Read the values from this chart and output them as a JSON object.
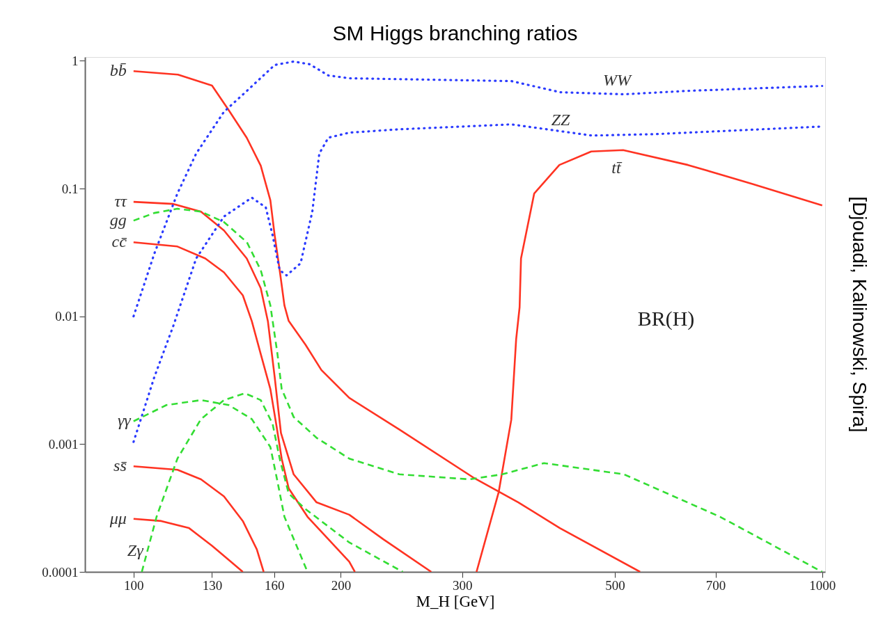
{
  "chart_data": {
    "type": "line",
    "title": "SM Higgs branching ratios",
    "xlabel": "M_H [GeV]",
    "log": "xy",
    "grid": false,
    "xlim": [
      85,
      1010
    ],
    "ylim": [
      0.0001,
      1.07
    ],
    "xticks": [
      100,
      130,
      160,
      200,
      300,
      500,
      700,
      1000
    ],
    "yticks": [
      0.0001,
      0.001,
      0.01,
      0.1,
      1
    ],
    "series": [
      {
        "name": "bb̄",
        "color": "#ff3322",
        "line_style": "solid",
        "x": [
          100,
          116,
          130,
          137.5,
          146,
          153,
          158,
          160.3,
          163,
          165.6,
          168,
          177.7,
          187.4,
          205.7,
          243.2,
          311,
          362,
          416,
          544
        ],
        "values": [
          0.83,
          0.78,
          0.64,
          0.41,
          0.25,
          0.151,
          0.081,
          0.043,
          0.023,
          0.0122,
          0.0092,
          0.006,
          0.0038,
          0.0023,
          0.0013,
          0.00055,
          0.00035,
          0.00022,
          0.0001
        ]
      },
      {
        "name": "ττ",
        "color": "#ff3322",
        "line_style": "solid",
        "x": [
          100,
          114.2,
          125.3,
          135.3,
          146,
          153,
          156.7,
          160.3,
          163.7,
          170.8,
          184.4,
          205.7,
          230.5,
          270.6
        ],
        "values": [
          0.0787,
          0.0758,
          0.066,
          0.047,
          0.0284,
          0.0166,
          0.00916,
          0.00335,
          0.00122,
          0.00058,
          0.00035,
          0.00028,
          0.00018,
          0.0001
        ]
      },
      {
        "name": "cc̄",
        "color": "#ff3322",
        "line_style": "solid",
        "x": [
          100,
          115.8,
          127.1,
          135.3,
          144.1,
          148.5,
          153,
          158,
          161.1,
          164.1,
          168,
          178.9,
          205.7,
          209.6
        ],
        "values": [
          0.038,
          0.0352,
          0.0284,
          0.0221,
          0.0146,
          0.00916,
          0.00507,
          0.0027,
          0.00144,
          0.00077,
          0.00045,
          0.00027,
          0.00012,
          0.0001
        ]
      },
      {
        "name": "ss̄",
        "color": "#ff3322",
        "line_style": "solid",
        "x": [
          100,
          115.8,
          125.3,
          135.3,
          144.1,
          151,
          154.5
        ],
        "values": [
          0.00067,
          0.00063,
          0.00053,
          0.00039,
          0.00025,
          0.00015,
          0.0001
        ]
      },
      {
        "name": "μμ",
        "color": "#ff3322",
        "line_style": "solid",
        "x": [
          100,
          109.7,
          120.4,
          130,
          138.5,
          144.1
        ],
        "values": [
          0.00026,
          0.00025,
          0.00022,
          0.00016,
          0.00012,
          0.0001
        ]
      },
      {
        "name": "tt̄",
        "color": "#ff3322",
        "line_style": "solid",
        "x": [
          314.8,
          339,
          353.6,
          359.4,
          363.6,
          365.3,
          381.8,
          415.3,
          462,
          514,
          638.4,
          790.7,
          1000
        ],
        "values": [
          0.0001,
          0.00042,
          0.00155,
          0.0066,
          0.0118,
          0.0284,
          0.0916,
          0.153,
          0.195,
          0.2,
          0.153,
          0.109,
          0.0739
        ]
      },
      {
        "name": "WW",
        "color": "#2b3bff",
        "line_style": "dotted",
        "x": [
          100,
          107.2,
          115.8,
          123.3,
          135.3,
          146.1,
          160.3,
          170.8,
          180.2,
          191.8,
          205.7,
          353.6,
          416.3,
          515.3,
          638.4,
          1000
        ],
        "values": [
          0.01,
          0.031,
          0.0916,
          0.188,
          0.399,
          0.582,
          0.927,
          0.987,
          0.94,
          0.768,
          0.73,
          0.694,
          0.568,
          0.547,
          0.582,
          0.636
        ]
      },
      {
        "name": "ZZ",
        "color": "#2b3bff",
        "line_style": "dotted",
        "x": [
          100,
          107.2,
          114.2,
          123.3,
          135.3,
          148.5,
          155.6,
          159.2,
          163,
          166.8,
          174.8,
          181.8,
          186.1,
          191.8,
          205.7,
          243.2,
          353.6,
          463,
          573.5,
          1000
        ],
        "values": [
          0.00104,
          0.00335,
          0.0084,
          0.0284,
          0.0604,
          0.0849,
          0.0712,
          0.043,
          0.023,
          0.0209,
          0.026,
          0.066,
          0.188,
          0.25,
          0.274,
          0.291,
          0.318,
          0.26,
          0.267,
          0.306
        ]
      },
      {
        "name": "gg",
        "color": "#33dd33",
        "line_style": "dashed",
        "x": [
          100,
          107.2,
          115.8,
          125.3,
          135.3,
          146.1,
          153,
          158,
          161.8,
          164.1,
          170.8,
          184.4,
          205.7,
          243.2,
          307.5,
          343,
          394.5,
          515.3,
          710.6,
          1000
        ],
        "values": [
          0.0561,
          0.0644,
          0.0695,
          0.066,
          0.0547,
          0.038,
          0.023,
          0.0122,
          0.00507,
          0.0027,
          0.00163,
          0.00112,
          0.00077,
          0.00058,
          0.00053,
          0.00058,
          0.00071,
          0.00058,
          0.00027,
          0.0001
        ]
      },
      {
        "name": "γγ",
        "color": "#33dd33",
        "line_style": "dashed",
        "x": [
          100,
          111.6,
          125.3,
          137.5,
          148.5,
          158,
          161.8,
          165.6,
          178.9
        ],
        "values": [
          0.00151,
          0.00202,
          0.00221,
          0.00202,
          0.00157,
          0.00095,
          0.00051,
          0.00027,
          0.0001
        ]
      },
      {
        "name": "Zγ",
        "color": "#33dd33",
        "line_style": "dashed",
        "x": [
          102.8,
          108,
          115.8,
          125.3,
          135.3,
          145.1,
          153,
          159.2,
          163,
          168,
          177.7,
          205.7,
          246
        ],
        "values": [
          0.0001,
          0.00027,
          0.00077,
          0.00157,
          0.00221,
          0.0025,
          0.00221,
          0.00144,
          0.00077,
          0.00041,
          0.00031,
          0.00017,
          0.0001
        ]
      }
    ],
    "annotations": [
      "BR(H)",
      "[Djouadi, Kalinowski, Spira]"
    ]
  }
}
